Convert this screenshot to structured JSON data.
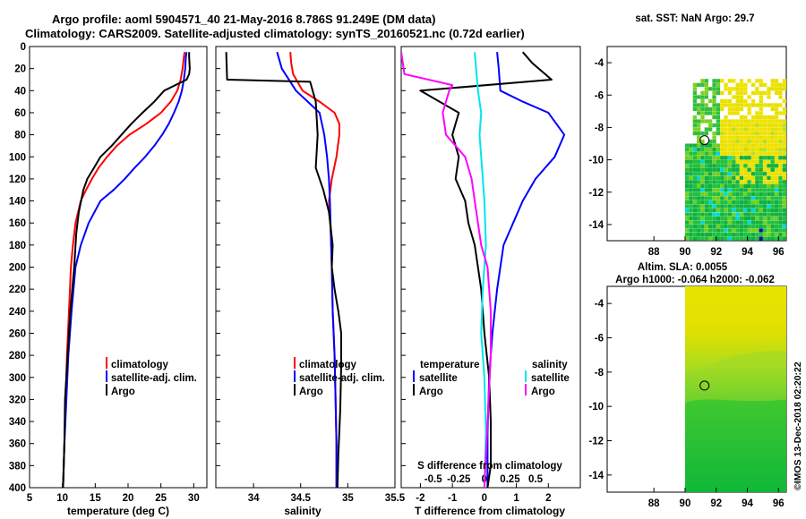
{
  "header": {
    "title_line1": "Argo profile: aoml 5904571_40 21-May-2016 8.786S 91.249E (DM data)",
    "title_line2": "Climatology: CARS2009. Satellite-adjusted climatology: synTS_20160521.nc (0.72d earlier)"
  },
  "colors": {
    "climatology": "#ff0000",
    "satellite": "#0000ff",
    "argo": "#000000",
    "satellite_salinity": "#00e5ee",
    "argo_salinity": "#ff00ff",
    "map_yellow": "#f0e000",
    "map_green": "#00b800"
  },
  "chart_data": [
    {
      "name": "temperature-panel",
      "type": "line",
      "xlabel": "temperature (deg C)",
      "ylabel": "",
      "xlim": [
        5,
        32
      ],
      "ylim": [
        400,
        0
      ],
      "xticks": [
        5,
        10,
        15,
        20,
        25,
        30
      ],
      "yticks": [
        0,
        20,
        40,
        60,
        80,
        100,
        120,
        140,
        160,
        180,
        200,
        220,
        240,
        260,
        280,
        300,
        320,
        340,
        360,
        380,
        400
      ],
      "legend": [
        "climatology",
        "satellite-adj. clim.",
        "Argo"
      ],
      "legend_position": "lower-right",
      "series": [
        {
          "name": "climatology",
          "color_key": "climatology",
          "x": [
            28.6,
            28.5,
            28.3,
            28.0,
            27.5,
            26.5,
            25.0,
            22.8,
            20.2,
            18.3,
            16.8,
            15.5,
            14.5,
            13.6,
            12.8,
            12.0,
            11.6,
            11.3,
            11.0,
            10.7,
            10.5,
            10.3,
            10.1
          ],
          "y": [
            5,
            10,
            20,
            30,
            40,
            50,
            60,
            70,
            80,
            90,
            100,
            110,
            120,
            130,
            140,
            160,
            180,
            200,
            240,
            280,
            320,
            360,
            400
          ]
        },
        {
          "name": "satellite-adj. clim.",
          "color_key": "satellite",
          "x": [
            28.9,
            28.8,
            28.7,
            28.5,
            28.2,
            27.7,
            27.0,
            26.2,
            25.2,
            24.0,
            22.6,
            21.0,
            19.5,
            17.8,
            15.8,
            14.0,
            12.8,
            12.0,
            11.4,
            10.9,
            10.6,
            10.3,
            10.1
          ],
          "y": [
            5,
            10,
            20,
            30,
            40,
            50,
            60,
            70,
            80,
            90,
            100,
            110,
            120,
            130,
            140,
            160,
            180,
            200,
            240,
            280,
            320,
            360,
            400
          ]
        },
        {
          "name": "Argo",
          "color_key": "argo",
          "x": [
            29.3,
            29.3,
            29.4,
            29.3,
            28.9,
            25.5,
            24.0,
            22.2,
            20.5,
            19.0,
            17.5,
            15.8,
            14.8,
            13.8,
            13.2,
            12.5,
            12.1,
            11.8,
            11.2,
            10.8,
            10.4,
            10.3,
            10.1
          ],
          "y": [
            5,
            10,
            20,
            25,
            30,
            40,
            50,
            60,
            70,
            80,
            90,
            100,
            110,
            120,
            130,
            150,
            170,
            200,
            240,
            280,
            320,
            360,
            400
          ]
        }
      ]
    },
    {
      "name": "salinity-panel",
      "type": "line",
      "xlabel": "salinity",
      "xlim": [
        33.6,
        35.5
      ],
      "ylim": [
        400,
        0
      ],
      "xticks": [
        34,
        34.5,
        35,
        35.5
      ],
      "xtick_labels": [
        "34",
        "34.5",
        "35",
        "35.5"
      ],
      "legend": [
        "climatology",
        "satellite-adj. clim.",
        "Argo"
      ],
      "legend_position": "lower-right",
      "series": [
        {
          "name": "climatology",
          "color_key": "climatology",
          "x": [
            34.39,
            34.4,
            34.42,
            34.52,
            34.7,
            34.86,
            34.91,
            34.91,
            34.88,
            34.83,
            34.8,
            34.82,
            34.83,
            34.84,
            34.86,
            34.87,
            34.88,
            34.88
          ],
          "y": [
            5,
            15,
            25,
            40,
            50,
            60,
            70,
            80,
            100,
            120,
            140,
            170,
            200,
            240,
            280,
            320,
            360,
            400
          ]
        },
        {
          "name": "satellite-adj. clim.",
          "color_key": "satellite",
          "x": [
            34.25,
            34.3,
            34.45,
            34.7,
            34.75,
            34.78,
            34.8,
            34.81,
            34.82,
            34.83,
            34.84,
            34.86,
            34.87,
            34.88,
            34.88
          ],
          "y": [
            5,
            20,
            40,
            60,
            80,
            100,
            120,
            140,
            170,
            200,
            240,
            280,
            320,
            360,
            400
          ]
        },
        {
          "name": "Argo",
          "color_key": "argo",
          "x": [
            33.71,
            33.72,
            34.6,
            34.66,
            34.68,
            34.66,
            34.74,
            34.8,
            34.84,
            34.83,
            34.86,
            34.9,
            34.93,
            34.93,
            34.92,
            34.9,
            34.89
          ],
          "y": [
            5,
            30,
            32,
            50,
            80,
            110,
            130,
            150,
            180,
            200,
            220,
            240,
            260,
            290,
            330,
            370,
            400
          ]
        }
      ]
    },
    {
      "name": "difference-panel",
      "type": "line",
      "xlabel": "T difference from climatology",
      "xlim": [
        -2.6,
        3.0
      ],
      "ylim": [
        400,
        0
      ],
      "xticks": [
        -2,
        -1,
        0,
        1,
        2
      ],
      "xtick_labels": [
        "-2",
        "-1",
        "0",
        "1",
        "2"
      ],
      "s_axis_label": "S difference from climatology",
      "s_xticks": [
        "-0.5",
        "-0.25",
        "0",
        "0.25",
        "0.5"
      ],
      "legend_temperature": {
        "title": "temperature",
        "entries": [
          "satellite",
          "Argo"
        ]
      },
      "legend_salinity": {
        "title": "salinity",
        "entries": [
          "satellite",
          "Argo"
        ]
      },
      "series": [
        {
          "name": "temperature satellite",
          "color_key": "satellite",
          "x": [
            0.4,
            0.45,
            0.5,
            1.2,
            2.0,
            2.5,
            2.2,
            1.6,
            1.2,
            0.9,
            0.6,
            0.4,
            0.25,
            0.15,
            0.1,
            0.1
          ],
          "y": [
            5,
            20,
            40,
            50,
            60,
            80,
            100,
            120,
            140,
            160,
            180,
            220,
            260,
            300,
            350,
            400
          ]
        },
        {
          "name": "temperature Argo",
          "color_key": "argo",
          "x": [
            1.2,
            1.5,
            2.1,
            -2.0,
            -0.8,
            -1.0,
            -0.8,
            -0.9,
            -0.6,
            -0.5,
            -0.3,
            -0.2,
            -0.1,
            0.0,
            0.15,
            0.2,
            0.2,
            0.1
          ],
          "y": [
            5,
            15,
            30,
            40,
            60,
            80,
            100,
            120,
            140,
            160,
            180,
            200,
            220,
            260,
            300,
            340,
            380,
            400
          ]
        },
        {
          "name": "salinity satellite",
          "color_key": "satellite_salinity",
          "x": [
            -0.3,
            -0.2,
            -0.1,
            -0.15,
            -0.1,
            0.0,
            0.05,
            -0.05,
            -0.1,
            0.0,
            0.05,
            0.0
          ],
          "y": [
            5,
            40,
            60,
            80,
            100,
            140,
            180,
            220,
            260,
            300,
            350,
            400
          ]
        },
        {
          "name": "salinity Argo",
          "color_key": "argo_salinity",
          "x": [
            -2.6,
            -2.5,
            -1.0,
            -1.1,
            -1.3,
            -1.2,
            -0.6,
            -0.4,
            -0.3,
            -0.1,
            0.1,
            0.2,
            0.2,
            0.1,
            0.0
          ],
          "y": [
            5,
            25,
            35,
            40,
            60,
            80,
            100,
            120,
            140,
            180,
            200,
            240,
            280,
            340,
            400
          ]
        }
      ]
    },
    {
      "name": "sst-map",
      "type": "heatmap",
      "title": "sat. SST: NaN Argo: 29.7",
      "xlim": [
        85,
        96.5
      ],
      "ylim": [
        -15,
        -3
      ],
      "xticks": [
        88,
        90,
        92,
        94,
        96
      ],
      "yticks": [
        -4,
        -6,
        -8,
        -10,
        -12,
        -14
      ],
      "argo_position": {
        "lon": 91.249,
        "lat": -8.786
      }
    },
    {
      "name": "sla-map",
      "type": "heatmap",
      "title_line1": "Altim. SLA: 0.0055",
      "title_line2": "Argo h1000: -0.064 h2000: -0.062",
      "xlim": [
        85,
        96.5
      ],
      "ylim": [
        -15,
        -3
      ],
      "xticks": [
        88,
        90,
        92,
        94,
        96
      ],
      "yticks": [
        -4,
        -6,
        -8,
        -10,
        -12,
        -14
      ],
      "argo_position": {
        "lon": 91.249,
        "lat": -8.786
      }
    }
  ],
  "side_note": "©IMOS 13-Dec-2018 02:20:22"
}
